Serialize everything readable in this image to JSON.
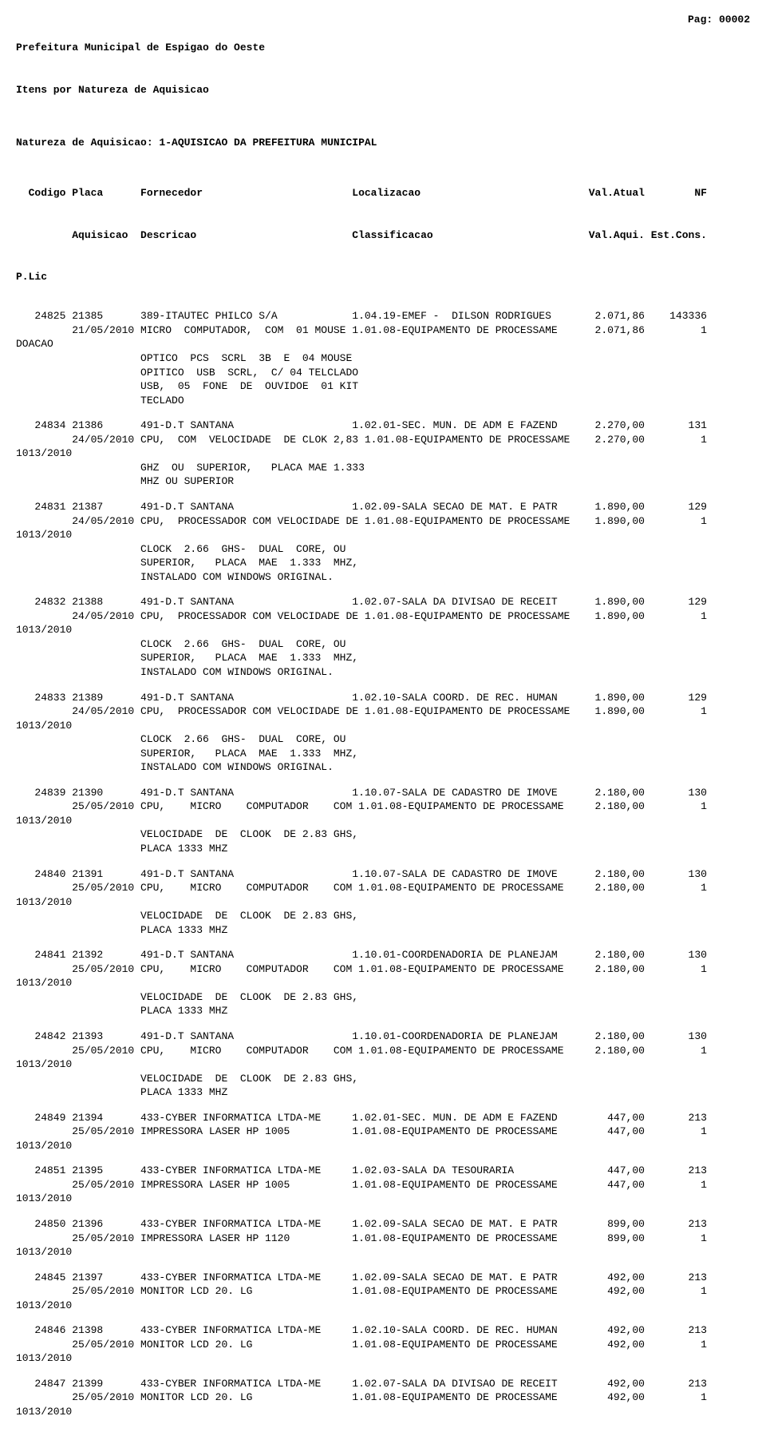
{
  "header": {
    "org": "Prefeitura Municipal de Espigao do Oeste",
    "report_title": "Itens por Natureza de Aquisicao",
    "page_label": "Pag: 00002",
    "section": "Natureza de Aquisicao: 1-AQUISICAO DA PREFEITURA MUNICIPAL"
  },
  "columns": {
    "line1": "  Codigo Placa      Fornecedor                        Localizacao                           Val.Atual        NF",
    "line2": "         Aquisicao  Descricao                         Classificacao                         Val.Aqui. Est.Cons.",
    "line3": "P.Lic"
  },
  "entries": [
    {
      "lines": [
        "   24825 21385      389-ITAUTEC PHILCO S/A            1.04.19-EMEF -  DILSON RODRIGUES       2.071,86    143336",
        "         21/05/2010 MICRO  COMPUTADOR,  COM  01 MOUSE 1.01.08-EQUIPAMENTO DE PROCESSAME      2.071,86         1",
        "DOACAO",
        "                    OPTICO  PCS  SCRL  3B  E  04 MOUSE",
        "                    OPITICO  USB  SCRL,  C/ 04 TELCLADO",
        "                    USB,  05  FONE  DE  OUVIDOE  01 KIT",
        "                    TECLADO"
      ]
    },
    {
      "lines": [
        "   24834 21386      491-D.T SANTANA                   1.02.01-SEC. MUN. DE ADM E FAZEND      2.270,00       131",
        "         24/05/2010 CPU,  COM  VELOCIDADE  DE CLOK 2,83 1.01.08-EQUIPAMENTO DE PROCESSAME    2.270,00         1",
        "1013/2010",
        "                    GHZ  OU  SUPERIOR,   PLACA MAE 1.333",
        "                    MHZ OU SUPERIOR"
      ]
    },
    {
      "lines": [
        "   24831 21387      491-D.T SANTANA                   1.02.09-SALA SECAO DE MAT. E PATR      1.890,00       129",
        "         24/05/2010 CPU,  PROCESSADOR COM VELOCIDADE DE 1.01.08-EQUIPAMENTO DE PROCESSAME    1.890,00         1",
        "1013/2010",
        "                    CLOCK  2.66  GHS-  DUAL  CORE, OU",
        "                    SUPERIOR,   PLACA  MAE  1.333  MHZ,",
        "                    INSTALADO COM WINDOWS ORIGINAL."
      ]
    },
    {
      "lines": [
        "   24832 21388      491-D.T SANTANA                   1.02.07-SALA DA DIVISAO DE RECEIT      1.890,00       129",
        "         24/05/2010 CPU,  PROCESSADOR COM VELOCIDADE DE 1.01.08-EQUIPAMENTO DE PROCESSAME    1.890,00         1",
        "1013/2010",
        "                    CLOCK  2.66  GHS-  DUAL  CORE, OU",
        "                    SUPERIOR,   PLACA  MAE  1.333  MHZ,",
        "                    INSTALADO COM WINDOWS ORIGINAL."
      ]
    },
    {
      "lines": [
        "   24833 21389      491-D.T SANTANA                   1.02.10-SALA COORD. DE REC. HUMAN      1.890,00       129",
        "         24/05/2010 CPU,  PROCESSADOR COM VELOCIDADE DE 1.01.08-EQUIPAMENTO DE PROCESSAME    1.890,00         1",
        "1013/2010",
        "                    CLOCK  2.66  GHS-  DUAL  CORE, OU",
        "                    SUPERIOR,   PLACA  MAE  1.333  MHZ,",
        "                    INSTALADO COM WINDOWS ORIGINAL."
      ]
    },
    {
      "lines": [
        "   24839 21390      491-D.T SANTANA                   1.10.07-SALA DE CADASTRO DE IMOVE      2.180,00       130",
        "         25/05/2010 CPU,    MICRO    COMPUTADOR    COM 1.01.08-EQUIPAMENTO DE PROCESSAME     2.180,00         1",
        "1013/2010",
        "                    VELOCIDADE  DE  CLOOK  DE 2.83 GHS,",
        "                    PLACA 1333 MHZ"
      ]
    },
    {
      "lines": [
        "   24840 21391      491-D.T SANTANA                   1.10.07-SALA DE CADASTRO DE IMOVE      2.180,00       130",
        "         25/05/2010 CPU,    MICRO    COMPUTADOR    COM 1.01.08-EQUIPAMENTO DE PROCESSAME     2.180,00         1",
        "1013/2010",
        "                    VELOCIDADE  DE  CLOOK  DE 2.83 GHS,",
        "                    PLACA 1333 MHZ"
      ]
    },
    {
      "lines": [
        "   24841 21392      491-D.T SANTANA                   1.10.01-COORDENADORIA DE PLANEJAM      2.180,00       130",
        "         25/05/2010 CPU,    MICRO    COMPUTADOR    COM 1.01.08-EQUIPAMENTO DE PROCESSAME     2.180,00         1",
        "1013/2010",
        "                    VELOCIDADE  DE  CLOOK  DE 2.83 GHS,",
        "                    PLACA 1333 MHZ"
      ]
    },
    {
      "lines": [
        "   24842 21393      491-D.T SANTANA                   1.10.01-COORDENADORIA DE PLANEJAM      2.180,00       130",
        "         25/05/2010 CPU,    MICRO    COMPUTADOR    COM 1.01.08-EQUIPAMENTO DE PROCESSAME     2.180,00         1",
        "1013/2010",
        "                    VELOCIDADE  DE  CLOOK  DE 2.83 GHS,",
        "                    PLACA 1333 MHZ"
      ]
    },
    {
      "lines": [
        "   24849 21394      433-CYBER INFORMATICA LTDA-ME     1.02.01-SEC. MUN. DE ADM E FAZEND        447,00       213",
        "         25/05/2010 IMPRESSORA LASER HP 1005          1.01.08-EQUIPAMENTO DE PROCESSAME        447,00         1",
        "1013/2010"
      ]
    },
    {
      "lines": [
        "   24851 21395      433-CYBER INFORMATICA LTDA-ME     1.02.03-SALA DA TESOURARIA               447,00       213",
        "         25/05/2010 IMPRESSORA LASER HP 1005          1.01.08-EQUIPAMENTO DE PROCESSAME        447,00         1",
        "1013/2010"
      ]
    },
    {
      "lines": [
        "   24850 21396      433-CYBER INFORMATICA LTDA-ME     1.02.09-SALA SECAO DE MAT. E PATR        899,00       213",
        "         25/05/2010 IMPRESSORA LASER HP 1120          1.01.08-EQUIPAMENTO DE PROCESSAME        899,00         1",
        "1013/2010"
      ]
    },
    {
      "lines": [
        "   24845 21397      433-CYBER INFORMATICA LTDA-ME     1.02.09-SALA SECAO DE MAT. E PATR        492,00       213",
        "         25/05/2010 MONITOR LCD 20. LG                1.01.08-EQUIPAMENTO DE PROCESSAME        492,00         1",
        "1013/2010"
      ]
    },
    {
      "lines": [
        "   24846 21398      433-CYBER INFORMATICA LTDA-ME     1.02.10-SALA COORD. DE REC. HUMAN        492,00       213",
        "         25/05/2010 MONITOR LCD 20. LG                1.01.08-EQUIPAMENTO DE PROCESSAME        492,00         1",
        "1013/2010"
      ]
    },
    {
      "lines": [
        "   24847 21399      433-CYBER INFORMATICA LTDA-ME     1.02.07-SALA DA DIVISAO DE RECEIT        492,00       213",
        "         25/05/2010 MONITOR LCD 20. LG                1.01.08-EQUIPAMENTO DE PROCESSAME        492,00         1",
        "1013/2010"
      ]
    }
  ]
}
